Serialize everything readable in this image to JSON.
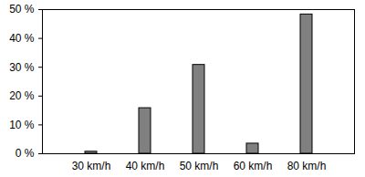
{
  "chart_data": {
    "type": "bar",
    "categories": [
      "30 km/h",
      "40 km/h",
      "50 km/h",
      "60 km/h",
      "80 km/h"
    ],
    "values": [
      0.7,
      15.8,
      30.8,
      3.5,
      48.3
    ],
    "color": "#808080",
    "ylim": [
      0,
      50
    ],
    "yticks": [
      {
        "value": 0,
        "label": "0 %"
      },
      {
        "value": 10,
        "label": "10 %"
      },
      {
        "value": 20,
        "label": "20 %"
      },
      {
        "value": 30,
        "label": "30 %"
      },
      {
        "value": 40,
        "label": "40 %"
      },
      {
        "value": 50,
        "label": "50 %"
      }
    ],
    "grid": false
  }
}
